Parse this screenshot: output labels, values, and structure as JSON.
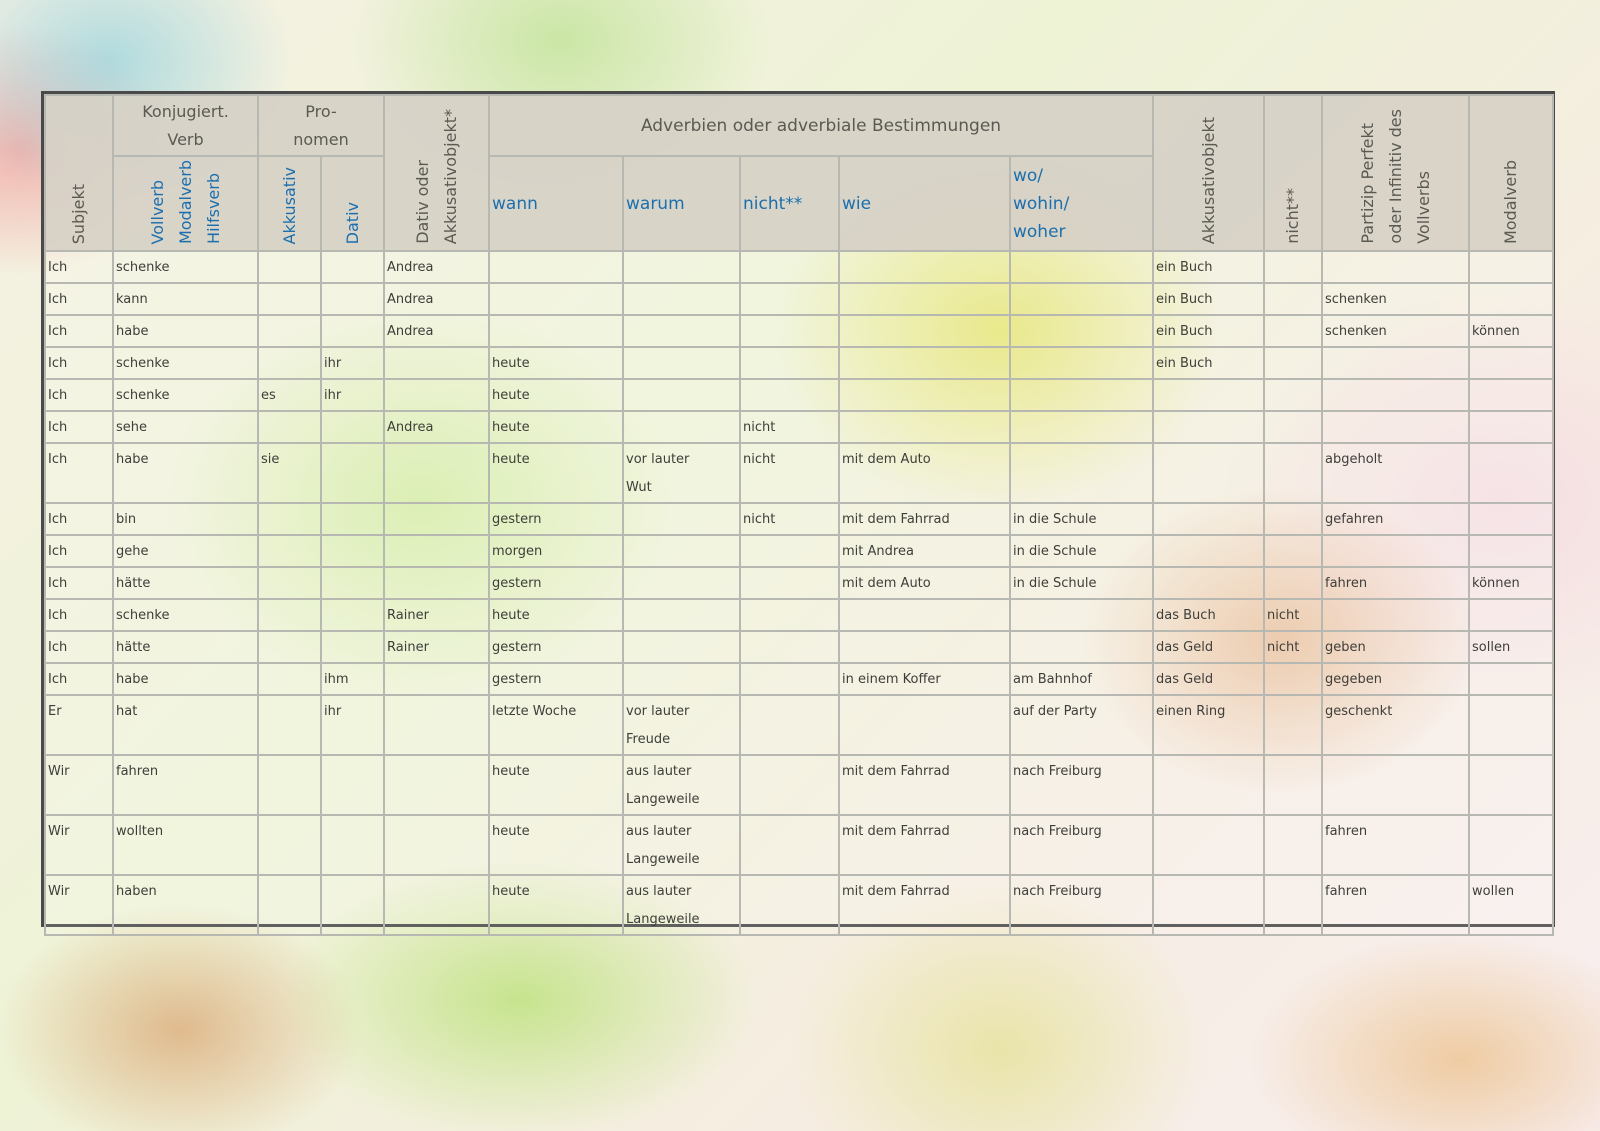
{
  "header": {
    "subjekt": "Subjekt",
    "konjugiert_top": "Konjugiert.",
    "konjugiert_bottom": "Verb",
    "vollverb": "Vollverb",
    "modalverb": "Modalverb",
    "hilfsverb": "Hilfsverb",
    "pronomen_top": "Pro-",
    "pronomen_bottom": "nomen",
    "akkusativ": "Akkusativ",
    "dativ": "Dativ",
    "dativ_akk_line1": "Dativ oder",
    "dativ_akk_line2": "Akkusativobjekt*",
    "adverbien": "Adverbien oder adverbiale Bestimmungen",
    "wann": "wann",
    "warum": "warum",
    "nicht_adv": "nicht**",
    "wie": "wie",
    "wo_line1": "wo/",
    "wo_line2": "wohin/",
    "wo_line3": "woher",
    "akkusativobjekt": "Akkusativobjekt",
    "nicht_col": "nicht**",
    "partizip_line1": "Partizip Perfekt",
    "partizip_line2": "oder Infinitiv des",
    "partizip_line3": "Vollverbs",
    "modalverb_col": "Modalverb"
  },
  "rows": [
    {
      "subjekt": "Ich",
      "verb": "schenke",
      "akk": "",
      "dat": "",
      "dat_akk": "Andrea",
      "wann": "",
      "warum": "",
      "nicht1": "",
      "wie": "",
      "wo": "",
      "akk_obj": "ein Buch",
      "nicht2": "",
      "partizip": "",
      "modal": ""
    },
    {
      "subjekt": "Ich",
      "verb": "kann",
      "akk": "",
      "dat": "",
      "dat_akk": "Andrea",
      "wann": "",
      "warum": "",
      "nicht1": "",
      "wie": "",
      "wo": "",
      "akk_obj": "ein Buch",
      "nicht2": "",
      "partizip": "schenken",
      "modal": ""
    },
    {
      "subjekt": "Ich",
      "verb": "habe",
      "akk": "",
      "dat": "",
      "dat_akk": "Andrea",
      "wann": "",
      "warum": "",
      "nicht1": "",
      "wie": "",
      "wo": "",
      "akk_obj": "ein Buch",
      "nicht2": "",
      "partizip": "schenken",
      "modal": "können"
    },
    {
      "subjekt": "Ich",
      "verb": "schenke",
      "akk": "",
      "dat": "ihr",
      "dat_akk": "",
      "wann": "heute",
      "warum": "",
      "nicht1": "",
      "wie": "",
      "wo": "",
      "akk_obj": "ein Buch",
      "nicht2": "",
      "partizip": "",
      "modal": ""
    },
    {
      "subjekt": "Ich",
      "verb": "schenke",
      "akk": "es",
      "dat": "ihr",
      "dat_akk": "",
      "wann": "heute",
      "warum": "",
      "nicht1": "",
      "wie": "",
      "wo": "",
      "akk_obj": "",
      "nicht2": "",
      "partizip": "",
      "modal": ""
    },
    {
      "subjekt": "Ich",
      "verb": "sehe",
      "akk": "",
      "dat": "",
      "dat_akk": "Andrea",
      "wann": "heute",
      "warum": "",
      "nicht1": "nicht",
      "wie": "",
      "wo": "",
      "akk_obj": "",
      "nicht2": "",
      "partizip": "",
      "modal": ""
    },
    {
      "subjekt": "Ich",
      "verb": "habe",
      "akk": "sie",
      "dat": "",
      "dat_akk": "",
      "wann": "heute",
      "warum": "vor lauter",
      "warum2": "Wut",
      "nicht1": "nicht",
      "wie": "mit dem Auto",
      "wo": "",
      "akk_obj": "",
      "nicht2": "",
      "partizip": "abgeholt",
      "modal": ""
    },
    {
      "subjekt": "Ich",
      "verb": "bin",
      "akk": "",
      "dat": "",
      "dat_akk": "",
      "wann": "gestern",
      "warum": "",
      "nicht1": "nicht",
      "wie": "mit dem Fahrrad",
      "wo": "in die Schule",
      "akk_obj": "",
      "nicht2": "",
      "partizip": "gefahren",
      "modal": ""
    },
    {
      "subjekt": "Ich",
      "verb": "gehe",
      "akk": "",
      "dat": "",
      "dat_akk": "",
      "wann": "morgen",
      "warum": "",
      "nicht1": "",
      "wie": "mit Andrea",
      "wo": "in die Schule",
      "akk_obj": "",
      "nicht2": "",
      "partizip": "",
      "modal": ""
    },
    {
      "subjekt": "Ich",
      "verb": "hätte",
      "akk": "",
      "dat": "",
      "dat_akk": "",
      "wann": "gestern",
      "warum": "",
      "nicht1": "",
      "wie": "mit dem Auto",
      "wo": "in die Schule",
      "akk_obj": "",
      "nicht2": "",
      "partizip": "fahren",
      "modal": "können"
    },
    {
      "subjekt": "Ich",
      "verb": "schenke",
      "akk": "",
      "dat": "",
      "dat_akk": "Rainer",
      "wann": "heute",
      "warum": "",
      "nicht1": "",
      "wie": "",
      "wo": "",
      "akk_obj": "das Buch",
      "nicht2": "nicht",
      "partizip": "",
      "modal": ""
    },
    {
      "subjekt": "Ich",
      "verb": "hätte",
      "akk": "",
      "dat": "",
      "dat_akk": "Rainer",
      "wann": "gestern",
      "warum": "",
      "nicht1": "",
      "wie": "",
      "wo": "",
      "akk_obj": "das Geld",
      "nicht2": "nicht",
      "partizip": "geben",
      "modal": "sollen"
    },
    {
      "subjekt": "Ich",
      "verb": "habe",
      "akk": "",
      "dat": "ihm",
      "dat_akk": "",
      "wann": "gestern",
      "warum": "",
      "nicht1": "",
      "wie": "in einem Koffer",
      "wo": "am Bahnhof",
      "akk_obj": "das Geld",
      "nicht2": "",
      "partizip": "gegeben",
      "modal": ""
    },
    {
      "subjekt": "Er",
      "verb": "hat",
      "akk": "",
      "dat": "ihr",
      "dat_akk": "",
      "wann": "letzte Woche",
      "warum": "vor lauter",
      "warum2": "Freude",
      "nicht1": "",
      "wie": "",
      "wo": "auf der Party",
      "akk_obj": "einen Ring",
      "nicht2": "",
      "partizip": "geschenkt",
      "modal": ""
    },
    {
      "subjekt": "Wir",
      "verb": "fahren",
      "akk": "",
      "dat": "",
      "dat_akk": "",
      "wann": "heute",
      "warum": "aus lauter",
      "warum2": "Langeweile",
      "nicht1": "",
      "wie": "mit dem Fahrrad",
      "wo": "nach Freiburg",
      "akk_obj": "",
      "nicht2": "",
      "partizip": "",
      "modal": ""
    },
    {
      "subjekt": "Wir",
      "verb": "wollten",
      "akk": "",
      "dat": "",
      "dat_akk": "",
      "wann": "heute",
      "warum": "aus lauter",
      "warum2": "Langeweile",
      "nicht1": "",
      "wie": "mit dem Fahrrad",
      "wo": "nach Freiburg",
      "akk_obj": "",
      "nicht2": "",
      "partizip": "fahren",
      "modal": ""
    },
    {
      "subjekt": "Wir",
      "verb": "haben",
      "akk": "",
      "dat": "",
      "dat_akk": "",
      "wann": "heute",
      "warum": "aus lauter",
      "warum2": "Langeweile",
      "nicht1": "",
      "wie": "mit dem Fahrrad",
      "wo": "nach Freiburg",
      "akk_obj": "",
      "nicht2": "",
      "partizip": "fahren",
      "modal": "wollen"
    }
  ]
}
